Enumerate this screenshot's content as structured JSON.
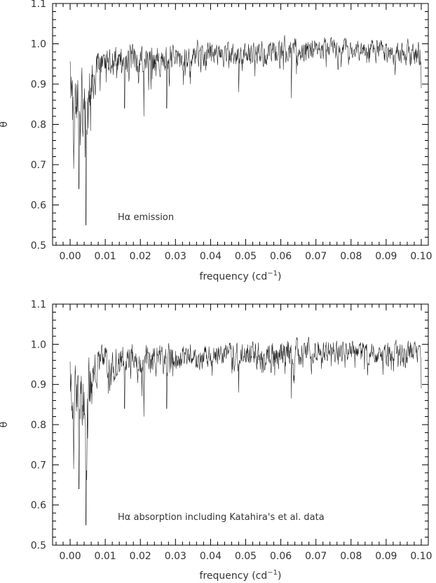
{
  "chart_data": [
    {
      "type": "line",
      "annotation": "Hα emission",
      "xlabel_text": "frequency (cd",
      "xlabel_sup": "−1",
      "xlabel_close": ")",
      "ylabel": "θ",
      "xlim": [
        -0.005,
        0.102
      ],
      "ylim": [
        0.5,
        1.1
      ],
      "xticks": [
        "0.00",
        "0.01",
        "0.02",
        "0.03",
        "0.04",
        "0.05",
        "0.06",
        "0.07",
        "0.08",
        "0.09",
        "0.10"
      ],
      "yticks": [
        "0.5",
        "0.6",
        "0.7",
        "0.8",
        "0.9",
        "1.0",
        "1.1"
      ],
      "grid": false,
      "series": [
        {
          "x_start": 0.0,
          "x_end": 0.1,
          "points": 1100,
          "color": "#1a1a1a",
          "envelope": [
            {
              "x": 0.0,
              "lower": 0.69,
              "upper": 0.97
            },
            {
              "x": 0.002,
              "lower": 0.64,
              "upper": 1.0
            },
            {
              "x": 0.0045,
              "lower": 0.55,
              "upper": 1.0
            },
            {
              "x": 0.008,
              "lower": 0.83,
              "upper": 1.01
            },
            {
              "x": 0.015,
              "lower": 0.84,
              "upper": 1.02
            },
            {
              "x": 0.021,
              "lower": 0.82,
              "upper": 1.02
            },
            {
              "x": 0.03,
              "lower": 0.86,
              "upper": 1.02
            },
            {
              "x": 0.04,
              "lower": 0.88,
              "upper": 1.02
            },
            {
              "x": 0.05,
              "lower": 0.88,
              "upper": 1.02
            },
            {
              "x": 0.063,
              "lower": 0.86,
              "upper": 1.03
            },
            {
              "x": 0.07,
              "lower": 0.9,
              "upper": 1.03
            },
            {
              "x": 0.08,
              "lower": 0.9,
              "upper": 1.02
            },
            {
              "x": 0.09,
              "lower": 0.89,
              "upper": 1.02
            },
            {
              "x": 0.1,
              "lower": 0.89,
              "upper": 1.02
            }
          ],
          "dips": [
            {
              "x": 0.0045,
              "y": 0.55
            },
            {
              "x": 0.0025,
              "y": 0.64
            },
            {
              "x": 0.001,
              "y": 0.69
            },
            {
              "x": 0.0155,
              "y": 0.84
            },
            {
              "x": 0.021,
              "y": 0.82
            },
            {
              "x": 0.0275,
              "y": 0.84
            },
            {
              "x": 0.048,
              "y": 0.88
            },
            {
              "x": 0.063,
              "y": 0.865
            },
            {
              "x": 0.1,
              "y": 0.89
            }
          ]
        }
      ]
    },
    {
      "type": "line",
      "annotation": "Hα absorption including Katahira's et al. data",
      "xlabel_text": "frequency (cd",
      "xlabel_sup": "−1",
      "xlabel_close": ")",
      "ylabel": "θ",
      "xlim": [
        -0.005,
        0.102
      ],
      "ylim": [
        0.5,
        1.1
      ],
      "xticks": [
        "0.00",
        "0.01",
        "0.02",
        "0.03",
        "0.04",
        "0.05",
        "0.06",
        "0.07",
        "0.08",
        "0.09",
        "0.10"
      ],
      "yticks": [
        "0.5",
        "0.6",
        "0.7",
        "0.8",
        "0.9",
        "1.0",
        "1.1"
      ],
      "grid": false,
      "series": [
        {
          "x_start": 0.0,
          "x_end": 0.1,
          "points": 1100,
          "color": "#1a1a1a",
          "envelope": [
            {
              "x": 0.0,
              "lower": 0.69,
              "upper": 0.97
            },
            {
              "x": 0.002,
              "lower": 0.64,
              "upper": 1.0
            },
            {
              "x": 0.0045,
              "lower": 0.55,
              "upper": 1.0
            },
            {
              "x": 0.008,
              "lower": 0.83,
              "upper": 1.01
            },
            {
              "x": 0.015,
              "lower": 0.84,
              "upper": 1.02
            },
            {
              "x": 0.021,
              "lower": 0.82,
              "upper": 1.02
            },
            {
              "x": 0.03,
              "lower": 0.86,
              "upper": 1.02
            },
            {
              "x": 0.04,
              "lower": 0.88,
              "upper": 1.02
            },
            {
              "x": 0.05,
              "lower": 0.88,
              "upper": 1.02
            },
            {
              "x": 0.063,
              "lower": 0.86,
              "upper": 1.03
            },
            {
              "x": 0.07,
              "lower": 0.9,
              "upper": 1.03
            },
            {
              "x": 0.08,
              "lower": 0.9,
              "upper": 1.02
            },
            {
              "x": 0.09,
              "lower": 0.89,
              "upper": 1.02
            },
            {
              "x": 0.1,
              "lower": 0.89,
              "upper": 1.02
            }
          ],
          "dips": [
            {
              "x": 0.0045,
              "y": 0.55
            },
            {
              "x": 0.0025,
              "y": 0.64
            },
            {
              "x": 0.001,
              "y": 0.69
            },
            {
              "x": 0.0155,
              "y": 0.84
            },
            {
              "x": 0.021,
              "y": 0.82
            },
            {
              "x": 0.0275,
              "y": 0.84
            },
            {
              "x": 0.048,
              "y": 0.88
            },
            {
              "x": 0.063,
              "y": 0.865
            },
            {
              "x": 0.1,
              "y": 0.89
            }
          ]
        }
      ]
    }
  ]
}
